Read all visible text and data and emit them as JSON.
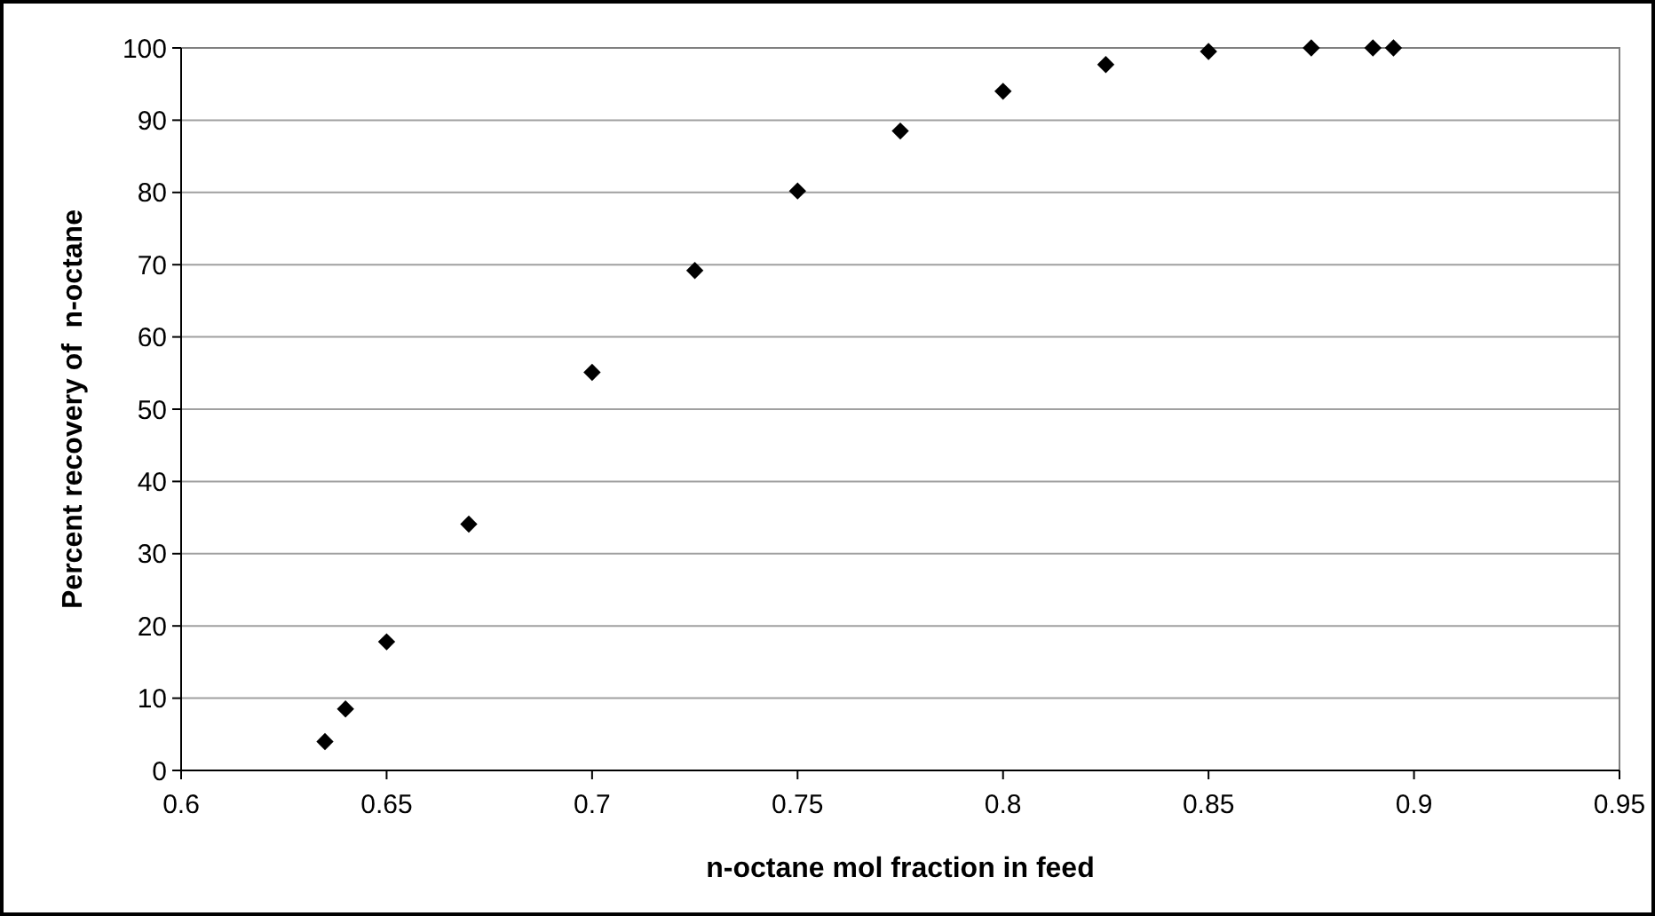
{
  "chart_data": {
    "type": "scatter",
    "xlabel": "n-octane mol fraction in feed",
    "ylabel": "Percent recovery of  n-octane",
    "x": [
      0.635,
      0.64,
      0.65,
      0.67,
      0.7,
      0.725,
      0.75,
      0.775,
      0.8,
      0.825,
      0.85,
      0.875,
      0.89,
      0.895
    ],
    "series": [
      {
        "color": "#000000",
        "values": [
          4,
          8.5,
          17.8,
          34.1,
          55.1,
          69.2,
          80.2,
          88.5,
          94,
          97.7,
          99.5,
          100,
          100,
          100
        ]
      }
    ],
    "xlim": [
      0.6,
      0.95
    ],
    "xticks": [
      0.6,
      0.65,
      0.7,
      0.75,
      0.8,
      0.85,
      0.9,
      0.95
    ],
    "ylim": [
      0,
      100
    ],
    "yticks": [
      0,
      10,
      20,
      30,
      40,
      50,
      60,
      70,
      80,
      90,
      100
    ],
    "grid": "y",
    "marker": "diamond"
  }
}
